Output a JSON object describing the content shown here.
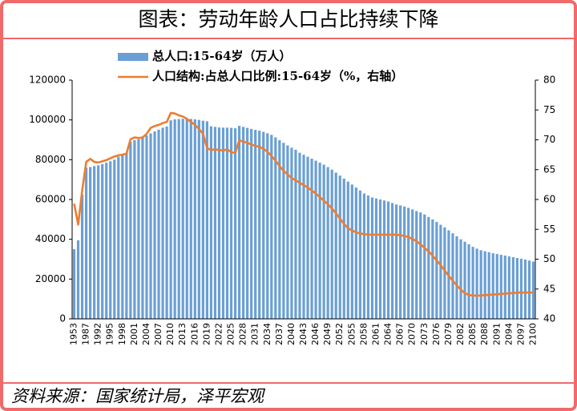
{
  "chart_data": {
    "type": "bar",
    "title": "图表：劳动年龄人口占比持续下降",
    "source": "资料来源：国家统计局，泽平宏观",
    "categories": [
      "1953",
      null,
      null,
      "1987",
      null,
      null,
      "1992",
      null,
      null,
      "1995",
      null,
      null,
      "1998",
      null,
      null,
      "2001",
      null,
      null,
      "2004",
      null,
      null,
      "2007",
      null,
      null,
      "2010",
      null,
      null,
      "2013",
      null,
      null,
      "2016",
      null,
      null,
      "2019",
      null,
      null,
      "2022",
      null,
      null,
      "2025",
      null,
      null,
      "2028",
      null,
      null,
      "2031",
      null,
      null,
      "2034",
      null,
      null,
      "2037",
      null,
      null,
      "2040",
      null,
      null,
      "2043",
      null,
      null,
      "2046",
      null,
      null,
      "2049",
      null,
      null,
      "2052",
      null,
      null,
      "2055",
      null,
      null,
      "2058",
      null,
      null,
      "2061",
      null,
      null,
      "2064",
      null,
      null,
      "2067",
      null,
      null,
      "2070",
      null,
      null,
      "2073",
      null,
      null,
      "2076",
      null,
      null,
      "2079",
      null,
      null,
      "2082",
      null,
      null,
      "2085",
      null,
      null,
      "2088",
      null,
      null,
      "2091",
      null,
      null,
      "2094",
      null,
      null,
      "2097",
      null,
      null,
      "2100"
    ],
    "series": [
      {
        "name": "总人口:15-64岁（万人）",
        "type": "bar",
        "color": "#6a9fd4",
        "values": [
          35000,
          39500,
          62500,
          76000,
          76300,
          76800,
          77200,
          77800,
          78500,
          79200,
          80000,
          81500,
          82800,
          83500,
          88900,
          89800,
          90300,
          91000,
          92200,
          93200,
          94200,
          95100,
          96100,
          96700,
          99800,
          100300,
          100400,
          100600,
          100700,
          100500,
          100300,
          100000,
          99600,
          99300,
          96800,
          96500,
          96200,
          96100,
          96100,
          96000,
          95800,
          97000,
          96500,
          96000,
          95500,
          95000,
          94600,
          94000,
          93300,
          92500,
          91200,
          89800,
          88500,
          87200,
          86000,
          85000,
          83500,
          82500,
          81500,
          80500,
          79500,
          78500,
          77500,
          76300,
          75000,
          73500,
          72000,
          70500,
          69000,
          67500,
          66000,
          64500,
          63000,
          62000,
          61000,
          60500,
          60000,
          59500,
          59000,
          58200,
          57500,
          57000,
          56500,
          55800,
          55000,
          54200,
          53500,
          52500,
          51200,
          50000,
          48700,
          47300,
          46000,
          44500,
          43000,
          41500,
          40000,
          38800,
          37500,
          36200,
          35300,
          34500,
          34000,
          33500,
          33000,
          32600,
          32200,
          31800,
          31400,
          31000,
          30600,
          30200,
          29800,
          29300,
          28800
        ]
      },
      {
        "name": "人口结构:占总人口比例:15-64岁（%，右轴）",
        "type": "line",
        "axis": "y2",
        "color": "#ed7d31",
        "values": [
          59.3,
          55.8,
          61.5,
          66.3,
          66.8,
          66.3,
          66.2,
          66.4,
          66.6,
          66.9,
          67.2,
          67.4,
          67.5,
          67.7,
          70.1,
          70.4,
          70.3,
          70.4,
          71.0,
          72.0,
          72.3,
          72.5,
          72.8,
          73.0,
          74.5,
          74.4,
          74.1,
          73.9,
          73.5,
          73.0,
          72.5,
          71.8,
          71.0,
          68.6,
          68.3,
          68.4,
          68.3,
          68.2,
          68.4,
          67.9,
          67.8,
          69.9,
          69.7,
          69.5,
          69.2,
          69.0,
          68.8,
          68.5,
          68.0,
          67.3,
          66.5,
          65.6,
          64.8,
          64.2,
          63.6,
          63.2,
          62.8,
          62.4,
          62.0,
          61.5,
          61.0,
          60.4,
          59.8,
          59.2,
          58.5,
          57.7,
          56.8,
          55.9,
          55.2,
          54.8,
          54.5,
          54.3,
          54.2,
          54.1,
          54.1,
          54.1,
          54.1,
          54.1,
          54.1,
          54.1,
          54.1,
          54.0,
          53.9,
          53.7,
          53.4,
          53.0,
          52.5,
          51.9,
          51.3,
          50.6,
          49.8,
          49.0,
          48.1,
          47.2,
          46.4,
          45.6,
          44.9,
          44.3,
          44.0,
          43.9,
          43.9,
          43.9,
          44.0,
          44.0,
          44.1,
          44.1,
          44.2,
          44.2,
          44.3,
          44.3,
          44.4,
          44.4,
          44.4,
          44.4,
          44.4
        ]
      }
    ],
    "ylim": [
      0,
      120000
    ],
    "yticks": [
      0,
      20000,
      40000,
      60000,
      80000,
      100000,
      120000
    ],
    "y2lim": [
      40,
      80
    ],
    "y2ticks": [
      40,
      45,
      50,
      55,
      60,
      65,
      70,
      75,
      80
    ]
  }
}
